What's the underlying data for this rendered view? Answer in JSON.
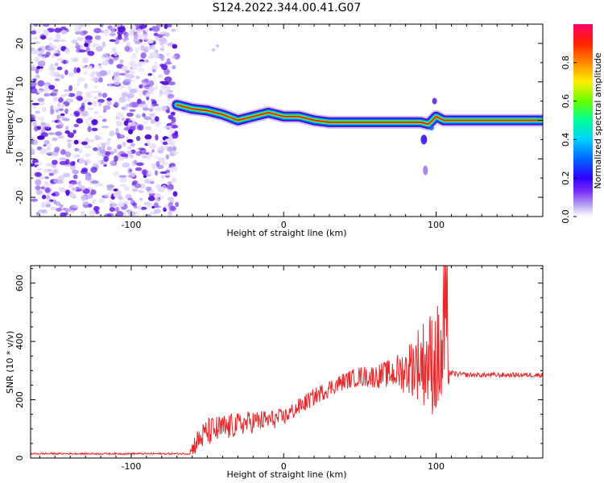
{
  "title": "S124.2022.344.00.41.G07",
  "colors": {
    "snr_line": "#e8282b",
    "noise_purple": "#8a2be2",
    "colorbar": [
      "#ffffff",
      "#b9a3f2",
      "#7b2ff7",
      "#2f00ff",
      "#0066ff",
      "#00d0ff",
      "#00ff99",
      "#66ff00",
      "#ffee00",
      "#ff8800",
      "#ff2200",
      "#ff0066"
    ]
  },
  "chart_data": [
    {
      "type": "heatmap",
      "xlabel": "Height of straight line (km)",
      "ylabel": "Frequency (Hz)",
      "xlim": [
        -166,
        170
      ],
      "ylim": [
        -25,
        25
      ],
      "xticks": [
        -100,
        0,
        100
      ],
      "xticklabels": [
        "-100",
        "0",
        "100"
      ],
      "yticks": [
        20,
        10,
        0,
        -10,
        -20
      ],
      "yticklabels": [
        "20",
        "10",
        "0",
        "-10",
        "-20"
      ],
      "noise_region_x": [
        -166,
        -70
      ],
      "ridge": {
        "x": [
          -70,
          -60,
          -50,
          -40,
          -30,
          -20,
          -10,
          0,
          10,
          20,
          30,
          40,
          50,
          60,
          70,
          80,
          90,
          95,
          100,
          105,
          120,
          140,
          160,
          170
        ],
        "y": [
          4,
          3,
          2.5,
          1.5,
          0,
          1,
          2,
          1,
          1,
          0,
          -0.5,
          -0.5,
          -0.5,
          -0.5,
          -0.5,
          -0.5,
          -0.5,
          -1,
          1,
          0,
          0,
          0,
          0,
          0
        ]
      },
      "colorbar": {
        "label": "Normalized spectral amplitude",
        "ticks": [
          0.0,
          0.2,
          0.4,
          0.6,
          0.8
        ],
        "ticklabels": [
          "0.0",
          "0.2",
          "0.4",
          "0.6",
          "0.8"
        ],
        "range": [
          0,
          1
        ]
      }
    },
    {
      "type": "line",
      "xlabel": "Height of straight line (km)",
      "ylabel": "SNR (10 * v/v)",
      "xlim": [
        -166,
        170
      ],
      "ylim": [
        0,
        660
      ],
      "xticks": [
        -100,
        0,
        100
      ],
      "xticklabels": [
        "-100",
        "0",
        "100"
      ],
      "yticks": [
        0,
        200,
        400,
        600
      ],
      "yticklabels": [
        "0",
        "200",
        "400",
        "600"
      ],
      "series": [
        {
          "x": [
            -166,
            -140,
            -120,
            -100,
            -80,
            -62,
            -58,
            -50,
            -40,
            -30,
            -20,
            -10,
            0,
            10,
            20,
            30,
            40,
            50,
            60,
            70,
            80,
            85,
            90,
            95,
            100,
            105,
            108,
            110,
            120,
            140,
            160,
            170
          ],
          "y": [
            15,
            15,
            15,
            15,
            15,
            15,
            50,
            90,
            100,
            115,
            125,
            130,
            140,
            175,
            210,
            240,
            265,
            280,
            280,
            290,
            300,
            320,
            330,
            330,
            330,
            330,
            300,
            290,
            285,
            285,
            285,
            285
          ],
          "noise_amplitude": [
            3,
            3,
            3,
            3,
            3,
            3,
            40,
            50,
            50,
            40,
            40,
            35,
            30,
            30,
            30,
            30,
            30,
            35,
            40,
            50,
            80,
            110,
            140,
            170,
            200,
            230,
            60,
            10,
            8,
            8,
            8,
            8
          ]
        }
      ]
    }
  ]
}
